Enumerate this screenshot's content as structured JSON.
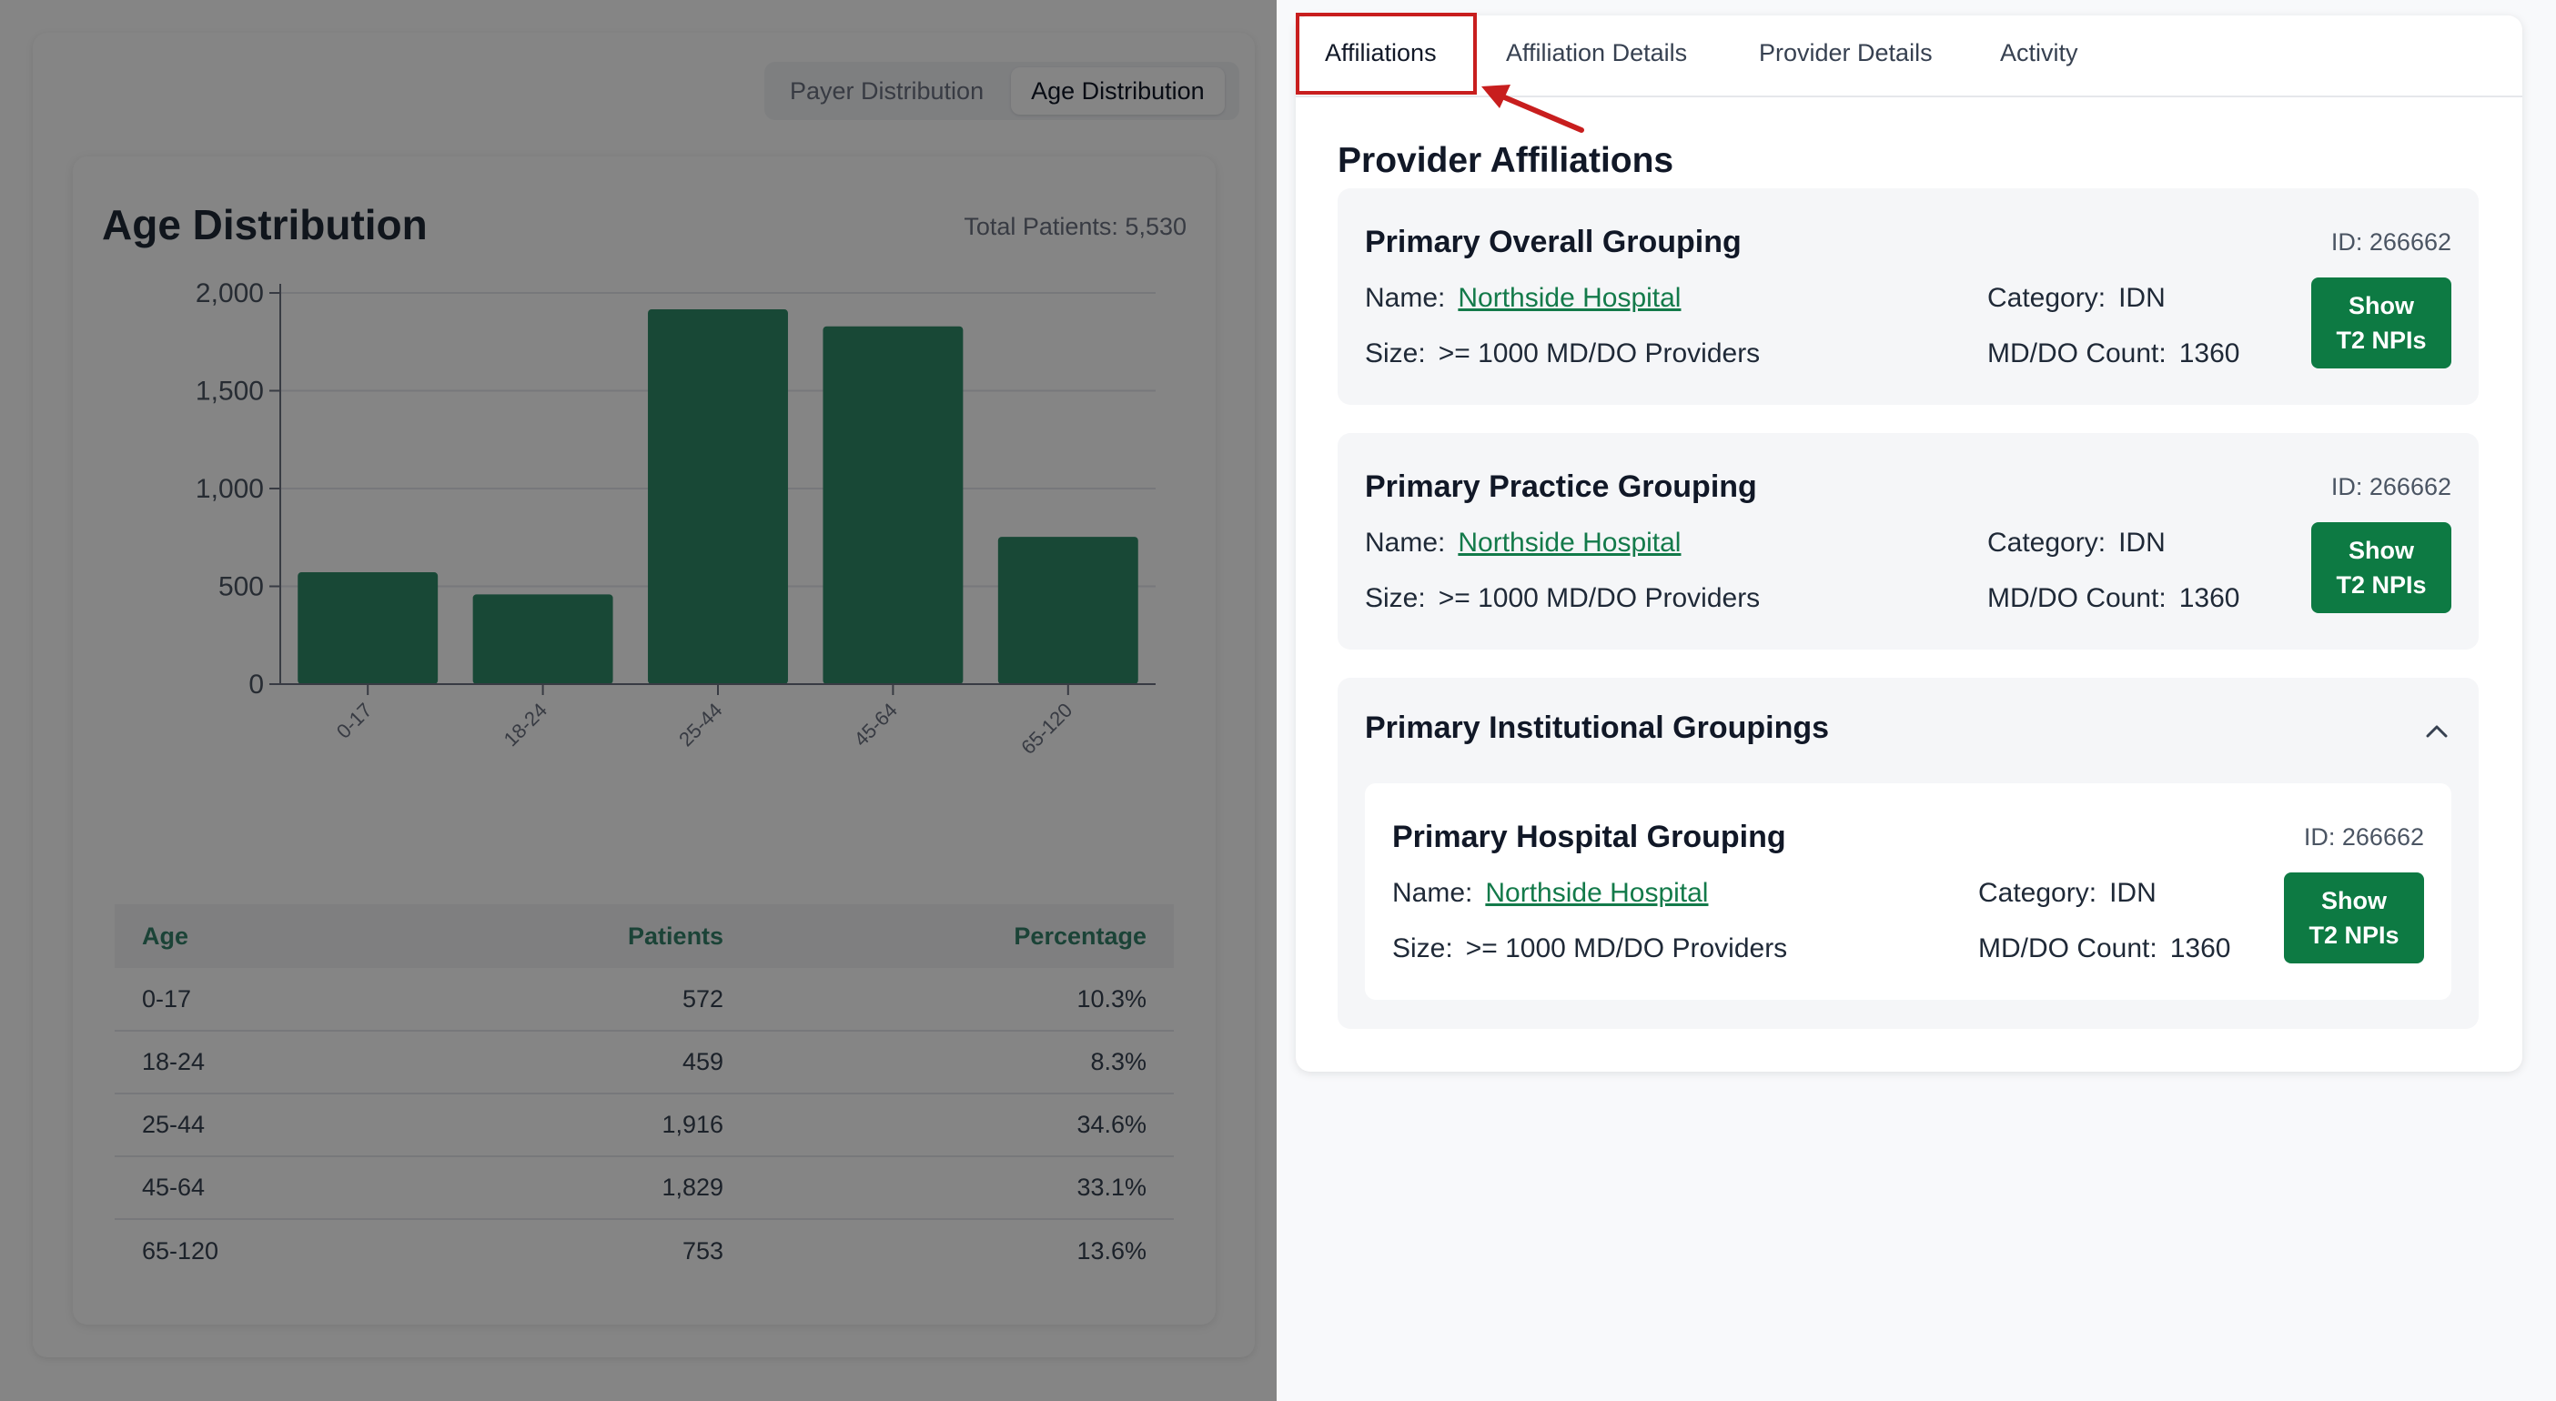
{
  "segment_toggle": {
    "payer_label": "Payer Distribution",
    "age_label": "Age Distribution"
  },
  "chart_panel": {
    "title": "Age Distribution",
    "total_patients": "Total Patients: 5,530"
  },
  "chart_data": {
    "type": "bar",
    "categories": [
      "0-17",
      "18-24",
      "25-44",
      "45-64",
      "65-120"
    ],
    "values": [
      572,
      459,
      1916,
      1829,
      753
    ],
    "y_ticks": [
      "0",
      "500",
      "1,000",
      "1,500",
      "2,000"
    ],
    "ylim": [
      0,
      2000
    ],
    "grid": true,
    "bar_color": "#2e8b68"
  },
  "age_table": {
    "headers": [
      "Age",
      "Patients",
      "Percentage"
    ],
    "rows": [
      [
        "0-17",
        "572",
        "10.3%"
      ],
      [
        "18-24",
        "459",
        "8.3%"
      ],
      [
        "25-44",
        "1,916",
        "34.6%"
      ],
      [
        "45-64",
        "1,829",
        "33.1%"
      ],
      [
        "65-120",
        "753",
        "13.6%"
      ]
    ]
  },
  "tabs": {
    "affiliations": "Affiliations",
    "affiliation_details": "Affiliation Details",
    "provider_details": "Provider Details",
    "activity": "Activity"
  },
  "affiliations": {
    "section_title": "Provider Affiliations",
    "overall": {
      "title": "Primary Overall Grouping",
      "id": "ID: 266662",
      "name_label": "Name:",
      "name_value": "Northside Hospital",
      "size_label": "Size:",
      "size_value": ">= 1000 MD/DO Providers",
      "category_label": "Category:",
      "category_value": "IDN",
      "count_label": "MD/DO Count:",
      "count_value": "1360",
      "button_line1": "Show",
      "button_line2": "T2 NPIs"
    },
    "practice": {
      "title": "Primary Practice Grouping",
      "id": "ID: 266662",
      "name_label": "Name:",
      "name_value": "Northside Hospital",
      "size_label": "Size:",
      "size_value": ">= 1000 MD/DO Providers",
      "category_label": "Category:",
      "category_value": "IDN",
      "count_label": "MD/DO Count:",
      "count_value": "1360",
      "button_line1": "Show",
      "button_line2": "T2 NPIs"
    },
    "institutional": {
      "title": "Primary Institutional Groupings",
      "hospital": {
        "title": "Primary Hospital Grouping",
        "id": "ID: 266662",
        "name_label": "Name:",
        "name_value": "Northside Hospital",
        "size_label": "Size:",
        "size_value": ">= 1000 MD/DO Providers",
        "category_label": "Category:",
        "category_value": "IDN",
        "count_label": "MD/DO Count:",
        "count_value": "1360",
        "button_line1": "Show",
        "button_line2": "T2 NPIs"
      }
    }
  }
}
